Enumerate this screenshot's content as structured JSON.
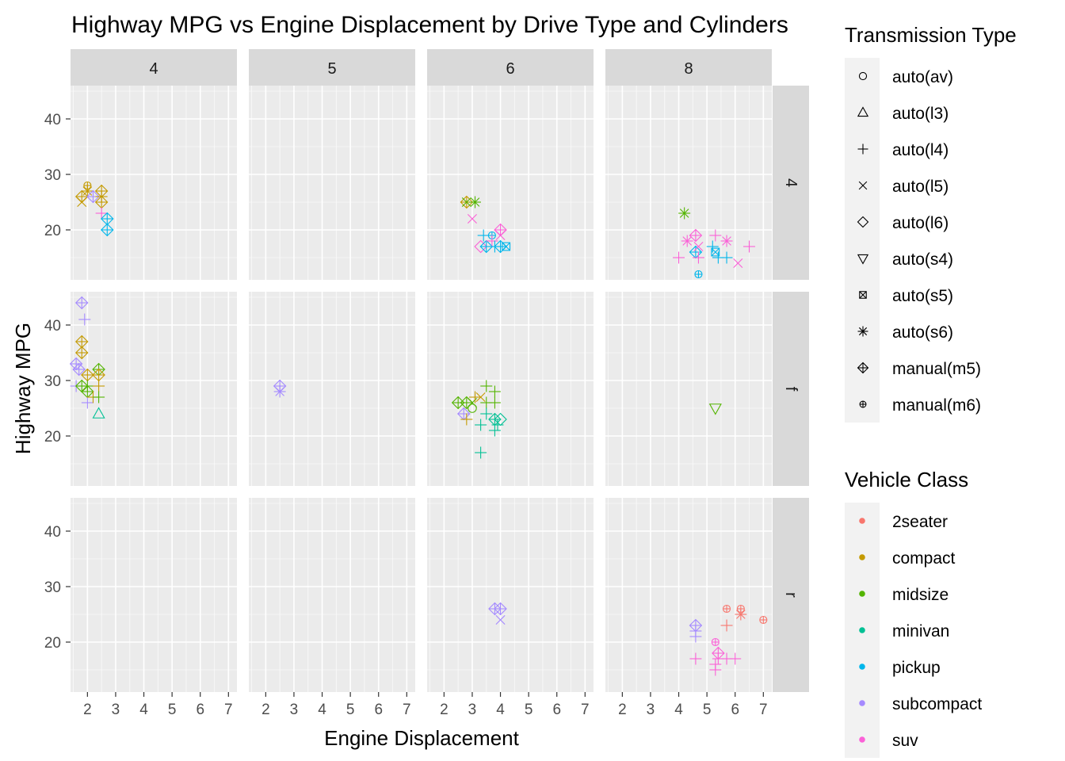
{
  "chart_data": {
    "type": "scatter",
    "title": "Highway MPG vs Engine Displacement by Drive Type and Cylinders",
    "xlabel": "Engine Displacement",
    "ylabel": "Highway MPG",
    "xlim": [
      1.4,
      7.3
    ],
    "ylim": [
      11,
      46
    ],
    "x_ticks": [
      2,
      3,
      4,
      5,
      6,
      7
    ],
    "y_ticks": [
      20,
      30,
      40
    ],
    "grid": true,
    "facet_cols": [
      "4",
      "5",
      "6",
      "8"
    ],
    "facet_rows": [
      "4",
      "f",
      "r"
    ],
    "color_legend": {
      "title": "Vehicle Class",
      "entries": [
        {
          "label": "2seater",
          "color": "#F8766D"
        },
        {
          "label": "compact",
          "color": "#C49A00"
        },
        {
          "label": "midsize",
          "color": "#53B400"
        },
        {
          "label": "minivan",
          "color": "#00C094"
        },
        {
          "label": "pickup",
          "color": "#00B6EB"
        },
        {
          "label": "subcompact",
          "color": "#A58AFF"
        },
        {
          "label": "suv",
          "color": "#FB61D7"
        }
      ]
    },
    "shape_legend": {
      "title": "Transmission Type",
      "entries": [
        {
          "label": "auto(av)",
          "shape": "circle"
        },
        {
          "label": "auto(l3)",
          "shape": "triangle"
        },
        {
          "label": "auto(l4)",
          "shape": "plus"
        },
        {
          "label": "auto(l5)",
          "shape": "cross"
        },
        {
          "label": "auto(l6)",
          "shape": "diamond"
        },
        {
          "label": "auto(s4)",
          "shape": "triangle-down"
        },
        {
          "label": "auto(s5)",
          "shape": "square-cross"
        },
        {
          "label": "auto(s6)",
          "shape": "star"
        },
        {
          "label": "manual(m5)",
          "shape": "diamond-plus"
        },
        {
          "label": "manual(m6)",
          "shape": "circle-plus"
        }
      ]
    },
    "points": [
      {
        "cyl": "4",
        "drv": "4",
        "x": 1.8,
        "y": 26,
        "cls": "compact",
        "trans": "manual(m5)"
      },
      {
        "cyl": "4",
        "drv": "4",
        "x": 1.8,
        "y": 25,
        "cls": "compact",
        "trans": "auto(l5)"
      },
      {
        "cyl": "4",
        "drv": "4",
        "x": 2.0,
        "y": 28,
        "cls": "compact",
        "trans": "manual(m6)"
      },
      {
        "cyl": "4",
        "drv": "4",
        "x": 2.0,
        "y": 27,
        "cls": "compact",
        "trans": "auto(s6)"
      },
      {
        "cyl": "4",
        "drv": "4",
        "x": 2.2,
        "y": 26,
        "cls": "subcompact",
        "trans": "manual(m5)"
      },
      {
        "cyl": "4",
        "drv": "4",
        "x": 2.5,
        "y": 27,
        "cls": "compact",
        "trans": "manual(m5)"
      },
      {
        "cyl": "4",
        "drv": "4",
        "x": 2.5,
        "y": 26,
        "cls": "compact",
        "trans": "auto(l4)"
      },
      {
        "cyl": "4",
        "drv": "4",
        "x": 2.5,
        "y": 25,
        "cls": "compact",
        "trans": "manual(m5)"
      },
      {
        "cyl": "4",
        "drv": "4",
        "x": 2.5,
        "y": 23,
        "cls": "suv",
        "trans": "auto(l4)"
      },
      {
        "cyl": "4",
        "drv": "4",
        "x": 2.7,
        "y": 22,
        "cls": "pickup",
        "trans": "manual(m5)"
      },
      {
        "cyl": "4",
        "drv": "4",
        "x": 2.7,
        "y": 20,
        "cls": "pickup",
        "trans": "manual(m5)"
      },
      {
        "cyl": "6",
        "drv": "4",
        "x": 2.8,
        "y": 25,
        "cls": "compact",
        "trans": "manual(m5)"
      },
      {
        "cyl": "6",
        "drv": "4",
        "x": 2.8,
        "y": 25,
        "cls": "midsize",
        "trans": "auto(l5)"
      },
      {
        "cyl": "6",
        "drv": "4",
        "x": 3.1,
        "y": 25,
        "cls": "midsize",
        "trans": "auto(s6)"
      },
      {
        "cyl": "6",
        "drv": "4",
        "x": 3.0,
        "y": 22,
        "cls": "suv",
        "trans": "auto(l5)"
      },
      {
        "cyl": "6",
        "drv": "4",
        "x": 3.3,
        "y": 17,
        "cls": "suv",
        "trans": "auto(l6)"
      },
      {
        "cyl": "6",
        "drv": "4",
        "x": 3.4,
        "y": 19,
        "cls": "pickup",
        "trans": "auto(l4)"
      },
      {
        "cyl": "6",
        "drv": "4",
        "x": 3.5,
        "y": 17,
        "cls": "pickup",
        "trans": "manual(m5)"
      },
      {
        "cyl": "6",
        "drv": "4",
        "x": 3.7,
        "y": 19,
        "cls": "pickup",
        "trans": "manual(m6)"
      },
      {
        "cyl": "6",
        "drv": "4",
        "x": 3.7,
        "y": 18,
        "cls": "suv",
        "trans": "auto(l4)"
      },
      {
        "cyl": "6",
        "drv": "4",
        "x": 3.8,
        "y": 17,
        "cls": "pickup",
        "trans": "auto(l4)"
      },
      {
        "cyl": "6",
        "drv": "4",
        "x": 4.0,
        "y": 20,
        "cls": "suv",
        "trans": "manual(m5)"
      },
      {
        "cyl": "6",
        "drv": "4",
        "x": 4.0,
        "y": 19,
        "cls": "suv",
        "trans": "auto(l5)"
      },
      {
        "cyl": "6",
        "drv": "4",
        "x": 4.0,
        "y": 17,
        "cls": "pickup",
        "trans": "manual(m5)"
      },
      {
        "cyl": "6",
        "drv": "4",
        "x": 4.2,
        "y": 17,
        "cls": "pickup",
        "trans": "auto(s5)"
      },
      {
        "cyl": "8",
        "drv": "4",
        "x": 4.2,
        "y": 23,
        "cls": "midsize",
        "trans": "auto(s6)"
      },
      {
        "cyl": "8",
        "drv": "4",
        "x": 4.0,
        "y": 15,
        "cls": "suv",
        "trans": "auto(l4)"
      },
      {
        "cyl": "8",
        "drv": "4",
        "x": 4.3,
        "y": 18,
        "cls": "suv",
        "trans": "auto(s6)"
      },
      {
        "cyl": "8",
        "drv": "4",
        "x": 4.6,
        "y": 19,
        "cls": "suv",
        "trans": "manual(m5)"
      },
      {
        "cyl": "8",
        "drv": "4",
        "x": 4.6,
        "y": 16,
        "cls": "pickup",
        "trans": "manual(m5)"
      },
      {
        "cyl": "8",
        "drv": "4",
        "x": 4.7,
        "y": 17,
        "cls": "suv",
        "trans": "auto(l5)"
      },
      {
        "cyl": "8",
        "drv": "4",
        "x": 4.7,
        "y": 15,
        "cls": "suv",
        "trans": "auto(l4)"
      },
      {
        "cyl": "8",
        "drv": "4",
        "x": 4.7,
        "y": 12,
        "cls": "pickup",
        "trans": "manual(m6)"
      },
      {
        "cyl": "8",
        "drv": "4",
        "x": 5.2,
        "y": 17,
        "cls": "pickup",
        "trans": "auto(l4)"
      },
      {
        "cyl": "8",
        "drv": "4",
        "x": 5.3,
        "y": 16,
        "cls": "pickup",
        "trans": "auto(s5)"
      },
      {
        "cyl": "8",
        "drv": "4",
        "x": 5.3,
        "y": 19,
        "cls": "suv",
        "trans": "auto(l4)"
      },
      {
        "cyl": "8",
        "drv": "4",
        "x": 5.4,
        "y": 15,
        "cls": "pickup",
        "trans": "auto(l4)"
      },
      {
        "cyl": "8",
        "drv": "4",
        "x": 5.7,
        "y": 18,
        "cls": "suv",
        "trans": "auto(s6)"
      },
      {
        "cyl": "8",
        "drv": "4",
        "x": 5.7,
        "y": 15,
        "cls": "pickup",
        "trans": "auto(l4)"
      },
      {
        "cyl": "8",
        "drv": "4",
        "x": 6.1,
        "y": 14,
        "cls": "suv",
        "trans": "auto(l5)"
      },
      {
        "cyl": "8",
        "drv": "4",
        "x": 6.5,
        "y": 17,
        "cls": "suv",
        "trans": "auto(l4)"
      },
      {
        "cyl": "4",
        "drv": "f",
        "x": 1.8,
        "y": 44,
        "cls": "subcompact",
        "trans": "manual(m5)"
      },
      {
        "cyl": "4",
        "drv": "f",
        "x": 1.9,
        "y": 41,
        "cls": "subcompact",
        "trans": "auto(l4)"
      },
      {
        "cyl": "4",
        "drv": "f",
        "x": 1.8,
        "y": 37,
        "cls": "compact",
        "trans": "manual(m5)"
      },
      {
        "cyl": "4",
        "drv": "f",
        "x": 1.8,
        "y": 35,
        "cls": "compact",
        "trans": "manual(m5)"
      },
      {
        "cyl": "4",
        "drv": "f",
        "x": 1.6,
        "y": 33,
        "cls": "subcompact",
        "trans": "manual(m5)"
      },
      {
        "cyl": "4",
        "drv": "f",
        "x": 1.7,
        "y": 32,
        "cls": "subcompact",
        "trans": "manual(m5)"
      },
      {
        "cyl": "4",
        "drv": "f",
        "x": 1.6,
        "y": 29,
        "cls": "subcompact",
        "trans": "auto(l4)"
      },
      {
        "cyl": "4",
        "drv": "f",
        "x": 1.8,
        "y": 29,
        "cls": "midsize",
        "trans": "manual(m5)"
      },
      {
        "cyl": "4",
        "drv": "f",
        "x": 2.0,
        "y": 31,
        "cls": "compact",
        "trans": "manual(m5)"
      },
      {
        "cyl": "4",
        "drv": "f",
        "x": 2.0,
        "y": 29,
        "cls": "midsize",
        "trans": "auto(l4)"
      },
      {
        "cyl": "4",
        "drv": "f",
        "x": 2.0,
        "y": 28,
        "cls": "midsize",
        "trans": "manual(m5)"
      },
      {
        "cyl": "4",
        "drv": "f",
        "x": 2.0,
        "y": 26,
        "cls": "subcompact",
        "trans": "auto(l4)"
      },
      {
        "cyl": "4",
        "drv": "f",
        "x": 2.2,
        "y": 27,
        "cls": "compact",
        "trans": "auto(l4)"
      },
      {
        "cyl": "4",
        "drv": "f",
        "x": 2.4,
        "y": 32,
        "cls": "midsize",
        "trans": "manual(m5)"
      },
      {
        "cyl": "4",
        "drv": "f",
        "x": 2.4,
        "y": 31,
        "cls": "compact",
        "trans": "manual(m5)"
      },
      {
        "cyl": "4",
        "drv": "f",
        "x": 2.4,
        "y": 29,
        "cls": "compact",
        "trans": "auto(l4)"
      },
      {
        "cyl": "4",
        "drv": "f",
        "x": 2.4,
        "y": 27,
        "cls": "midsize",
        "trans": "auto(l4)"
      },
      {
        "cyl": "4",
        "drv": "f",
        "x": 2.4,
        "y": 24,
        "cls": "minivan",
        "trans": "auto(l3)"
      },
      {
        "cyl": "5",
        "drv": "f",
        "x": 2.5,
        "y": 29,
        "cls": "subcompact",
        "trans": "manual(m5)"
      },
      {
        "cyl": "5",
        "drv": "f",
        "x": 2.5,
        "y": 28,
        "cls": "subcompact",
        "trans": "auto(s6)"
      },
      {
        "cyl": "6",
        "drv": "f",
        "x": 2.5,
        "y": 26,
        "cls": "midsize",
        "trans": "manual(m5)"
      },
      {
        "cyl": "6",
        "drv": "f",
        "x": 2.7,
        "y": 24,
        "cls": "subcompact",
        "trans": "manual(m5)"
      },
      {
        "cyl": "6",
        "drv": "f",
        "x": 2.8,
        "y": 26,
        "cls": "midsize",
        "trans": "manual(m5)"
      },
      {
        "cyl": "6",
        "drv": "f",
        "x": 2.8,
        "y": 23,
        "cls": "compact",
        "trans": "auto(l4)"
      },
      {
        "cyl": "6",
        "drv": "f",
        "x": 3.0,
        "y": 26,
        "cls": "midsize",
        "trans": "auto(l5)"
      },
      {
        "cyl": "6",
        "drv": "f",
        "x": 3.0,
        "y": 25,
        "cls": "midsize",
        "trans": "auto(av)"
      },
      {
        "cyl": "6",
        "drv": "f",
        "x": 3.1,
        "y": 27,
        "cls": "compact",
        "trans": "auto(l4)"
      },
      {
        "cyl": "6",
        "drv": "f",
        "x": 3.3,
        "y": 27,
        "cls": "compact",
        "trans": "auto(l5)"
      },
      {
        "cyl": "6",
        "drv": "f",
        "x": 3.3,
        "y": 22,
        "cls": "minivan",
        "trans": "auto(l4)"
      },
      {
        "cyl": "6",
        "drv": "f",
        "x": 3.3,
        "y": 17,
        "cls": "minivan",
        "trans": "auto(l4)"
      },
      {
        "cyl": "6",
        "drv": "f",
        "x": 3.5,
        "y": 29,
        "cls": "midsize",
        "trans": "auto(l4)"
      },
      {
        "cyl": "6",
        "drv": "f",
        "x": 3.5,
        "y": 26,
        "cls": "midsize",
        "trans": "auto(l4)"
      },
      {
        "cyl": "6",
        "drv": "f",
        "x": 3.5,
        "y": 24,
        "cls": "minivan",
        "trans": "auto(l4)"
      },
      {
        "cyl": "6",
        "drv": "f",
        "x": 3.8,
        "y": 28,
        "cls": "midsize",
        "trans": "auto(l4)"
      },
      {
        "cyl": "6",
        "drv": "f",
        "x": 3.8,
        "y": 26,
        "cls": "midsize",
        "trans": "auto(l4)"
      },
      {
        "cyl": "6",
        "drv": "f",
        "x": 3.8,
        "y": 23,
        "cls": "minivan",
        "trans": "manual(m5)"
      },
      {
        "cyl": "6",
        "drv": "f",
        "x": 3.8,
        "y": 21,
        "cls": "minivan",
        "trans": "auto(l4)"
      },
      {
        "cyl": "6",
        "drv": "f",
        "x": 3.9,
        "y": 22,
        "cls": "minivan",
        "trans": "auto(l4)"
      },
      {
        "cyl": "6",
        "drv": "f",
        "x": 4.0,
        "y": 23,
        "cls": "minivan",
        "trans": "auto(l6)"
      },
      {
        "cyl": "8",
        "drv": "f",
        "x": 5.3,
        "y": 25,
        "cls": "midsize",
        "trans": "auto(s4)"
      },
      {
        "cyl": "6",
        "drv": "r",
        "x": 3.8,
        "y": 26,
        "cls": "subcompact",
        "trans": "manual(m5)"
      },
      {
        "cyl": "6",
        "drv": "r",
        "x": 4.0,
        "y": 26,
        "cls": "subcompact",
        "trans": "manual(m5)"
      },
      {
        "cyl": "6",
        "drv": "r",
        "x": 4.0,
        "y": 24,
        "cls": "subcompact",
        "trans": "auto(l5)"
      },
      {
        "cyl": "8",
        "drv": "r",
        "x": 4.6,
        "y": 23,
        "cls": "subcompact",
        "trans": "manual(m5)"
      },
      {
        "cyl": "8",
        "drv": "r",
        "x": 4.6,
        "y": 22,
        "cls": "subcompact",
        "trans": "auto(l4)"
      },
      {
        "cyl": "8",
        "drv": "r",
        "x": 4.6,
        "y": 21,
        "cls": "subcompact",
        "trans": "auto(l4)"
      },
      {
        "cyl": "8",
        "drv": "r",
        "x": 4.6,
        "y": 17,
        "cls": "suv",
        "trans": "auto(l4)"
      },
      {
        "cyl": "8",
        "drv": "r",
        "x": 5.3,
        "y": 20,
        "cls": "suv",
        "trans": "manual(m6)"
      },
      {
        "cyl": "8",
        "drv": "r",
        "x": 5.4,
        "y": 18,
        "cls": "suv",
        "trans": "manual(m5)"
      },
      {
        "cyl": "8",
        "drv": "r",
        "x": 5.4,
        "y": 17,
        "cls": "suv",
        "trans": "auto(l4)"
      },
      {
        "cyl": "8",
        "drv": "r",
        "x": 5.3,
        "y": 16,
        "cls": "suv",
        "trans": "auto(l4)"
      },
      {
        "cyl": "8",
        "drv": "r",
        "x": 5.3,
        "y": 15,
        "cls": "suv",
        "trans": "auto(l4)"
      },
      {
        "cyl": "8",
        "drv": "r",
        "x": 5.7,
        "y": 26,
        "cls": "2seater",
        "trans": "manual(m6)"
      },
      {
        "cyl": "8",
        "drv": "r",
        "x": 5.7,
        "y": 23,
        "cls": "2seater",
        "trans": "auto(l4)"
      },
      {
        "cyl": "8",
        "drv": "r",
        "x": 5.7,
        "y": 17,
        "cls": "suv",
        "trans": "auto(l4)"
      },
      {
        "cyl": "8",
        "drv": "r",
        "x": 6.0,
        "y": 17,
        "cls": "suv",
        "trans": "auto(l4)"
      },
      {
        "cyl": "8",
        "drv": "r",
        "x": 6.2,
        "y": 26,
        "cls": "2seater",
        "trans": "manual(m6)"
      },
      {
        "cyl": "8",
        "drv": "r",
        "x": 6.2,
        "y": 25,
        "cls": "2seater",
        "trans": "auto(s6)"
      },
      {
        "cyl": "8",
        "drv": "r",
        "x": 7.0,
        "y": 24,
        "cls": "2seater",
        "trans": "manual(m6)"
      }
    ]
  }
}
